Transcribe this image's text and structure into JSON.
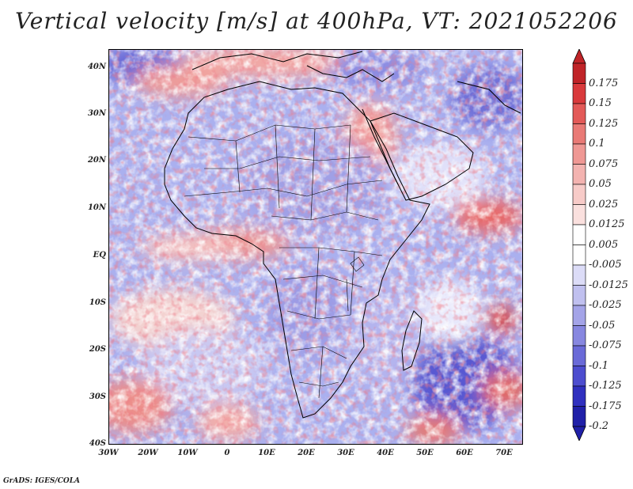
{
  "title": "Vertical velocity [m/s] at 400hPa, VT: 2021052206",
  "credit": "GrADS: IGES/COLA",
  "latitude_labels": [
    "40N",
    "30N",
    "20N",
    "10N",
    "EQ",
    "10S",
    "20S",
    "30S",
    "40S"
  ],
  "longitude_labels": [
    "30W",
    "20W",
    "10W",
    "0",
    "10E",
    "20E",
    "30E",
    "40E",
    "50E",
    "60E",
    "70E"
  ],
  "colorbar": {
    "labels": [
      "0.175",
      "0.15",
      "0.125",
      "0.1",
      "0.075",
      "0.05",
      "0.025",
      "0.0125",
      "0.005",
      "-0.005",
      "-0.0125",
      "-0.025",
      "-0.05",
      "-0.075",
      "-0.1",
      "-0.125",
      "-0.175",
      "-0.2"
    ],
    "colors": [
      "#c02428",
      "#d93a3c",
      "#e35a58",
      "#e97a76",
      "#ef9894",
      "#f3b3b0",
      "#f7cbc8",
      "#fae0de",
      "#ffffff",
      "#ffffff",
      "#dcdcf7",
      "#c0c0ef",
      "#a4a4e8",
      "#8787e0",
      "#6a6ad8",
      "#4d4dcf",
      "#3030bf",
      "#2020a8"
    ]
  },
  "field_colors": {
    "strong_up": "#c02428",
    "moderate_up": "#ef9894",
    "weak_up": "#fae0de",
    "neutral": "#ffffff",
    "weak_down": "#dcdcf7",
    "moderate_down": "#a4a4e8",
    "strong_down": "#3030bf"
  }
}
